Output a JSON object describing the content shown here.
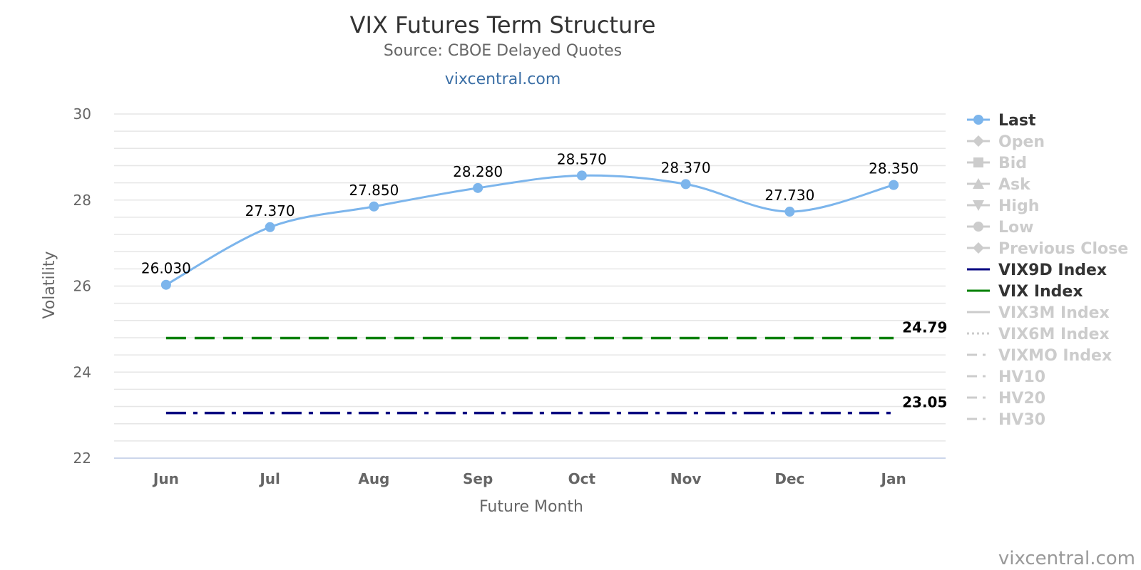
{
  "chart_data": {
    "type": "line",
    "title": "VIX Futures Term Structure",
    "subtitle": "Source: CBOE Delayed Quotes",
    "site_link": "vixcentral.com",
    "credit": "vixcentral.com",
    "xlabel": "Future Month",
    "ylabel": "Volatility",
    "ylim": [
      22,
      30
    ],
    "yticks": [
      22,
      24,
      26,
      28,
      30
    ],
    "ytick_labels": [
      "22",
      "24",
      "26",
      "28",
      "30"
    ],
    "minor_step": 0.4,
    "grid": true,
    "legend_position": "right",
    "categories": [
      "Jun",
      "Jul",
      "Aug",
      "Sep",
      "Oct",
      "Nov",
      "Dec",
      "Jan"
    ],
    "series": [
      {
        "name": "Last",
        "color": "#7cb5ec",
        "values": [
          26.03,
          27.37,
          27.85,
          28.28,
          28.57,
          28.37,
          27.73,
          28.35
        ],
        "labels": [
          "26.030",
          "27.370",
          "27.850",
          "28.280",
          "28.570",
          "28.370",
          "27.730",
          "28.350"
        ]
      }
    ],
    "reference_lines": [
      {
        "name": "VIX Index",
        "value": 24.79,
        "label": "24.79",
        "color": "#008000",
        "dash": "dash"
      },
      {
        "name": "VIX9D Index",
        "value": 23.05,
        "label": "23.05",
        "color": "#000080",
        "dash": "dashdot"
      }
    ],
    "legend": [
      {
        "name": "Last",
        "active": true,
        "symbol": "circle",
        "color": "#7cb5ec",
        "text_color": "#333333"
      },
      {
        "name": "Open",
        "active": false,
        "symbol": "diamond",
        "color": "#cccccc",
        "text_color": "#cccccc"
      },
      {
        "name": "Bid",
        "active": false,
        "symbol": "square",
        "color": "#cccccc",
        "text_color": "#cccccc"
      },
      {
        "name": "Ask",
        "active": false,
        "symbol": "triangle",
        "color": "#cccccc",
        "text_color": "#cccccc"
      },
      {
        "name": "High",
        "active": false,
        "symbol": "triangle-down",
        "color": "#cccccc",
        "text_color": "#cccccc"
      },
      {
        "name": "Low",
        "active": false,
        "symbol": "circle",
        "color": "#cccccc",
        "text_color": "#cccccc"
      },
      {
        "name": "Previous Close",
        "active": false,
        "symbol": "diamond",
        "color": "#cccccc",
        "text_color": "#cccccc"
      },
      {
        "name": "VIX9D Index",
        "active": true,
        "symbol": "line",
        "color": "#000080",
        "text_color": "#333333"
      },
      {
        "name": "VIX Index",
        "active": true,
        "symbol": "line",
        "color": "#008000",
        "text_color": "#333333"
      },
      {
        "name": "VIX3M Index",
        "active": false,
        "symbol": "line",
        "color": "#cccccc",
        "text_color": "#cccccc"
      },
      {
        "name": "VIX6M Index",
        "active": false,
        "symbol": "dotted",
        "color": "#cccccc",
        "text_color": "#cccccc"
      },
      {
        "name": "VIXMO Index",
        "active": false,
        "symbol": "dashdot",
        "color": "#cccccc",
        "text_color": "#cccccc"
      },
      {
        "name": "HV10",
        "active": false,
        "symbol": "dashdot",
        "color": "#cccccc",
        "text_color": "#cccccc"
      },
      {
        "name": "HV20",
        "active": false,
        "symbol": "dashdot",
        "color": "#cccccc",
        "text_color": "#cccccc"
      },
      {
        "name": "HV30",
        "active": false,
        "symbol": "dashdot",
        "color": "#cccccc",
        "text_color": "#cccccc"
      }
    ]
  }
}
